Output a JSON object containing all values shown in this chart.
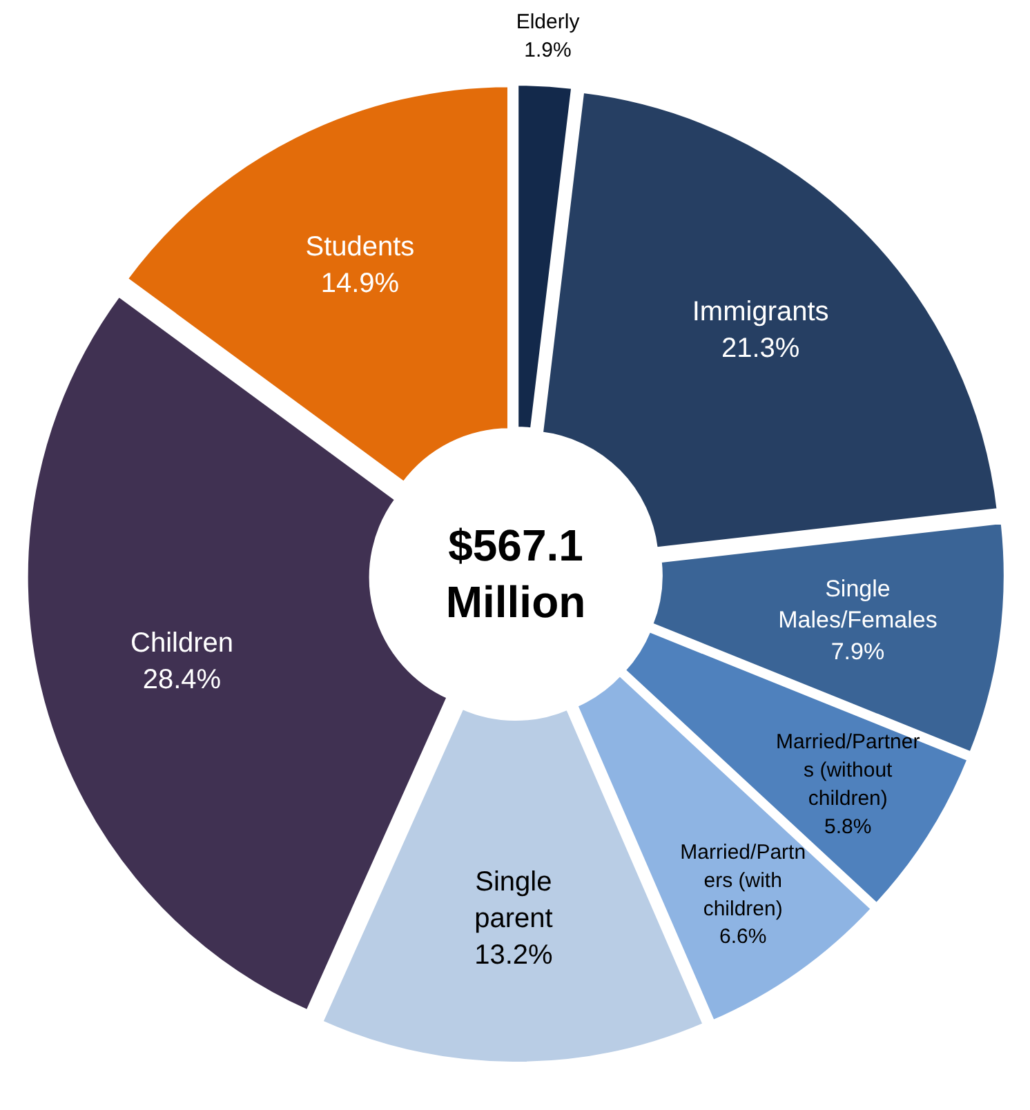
{
  "chart_data": {
    "type": "donut",
    "categories": [
      "Elderly",
      "Immigrants",
      "Single\nMales/Females",
      "Married/Partner\ns (without\nchildren)",
      "Married/Partn\ners (with\nchildren)",
      "Single\nparent",
      "Children",
      "Students"
    ],
    "values": [
      1.9,
      21.3,
      7.9,
      5.8,
      6.6,
      13.2,
      28.4,
      14.9
    ],
    "colors": [
      "#13294b",
      "#263f63",
      "#3a6496",
      "#4f81bd",
      "#8eb4e3",
      "#b9cde5",
      "#403152",
      "#e36c0a"
    ],
    "value_labels": [
      "1.9%",
      "21.3%",
      "7.9%",
      "5.8%",
      "6.6%",
      "13.2%",
      "28.4%",
      "14.9%"
    ],
    "annotations": [
      "$567.1\nMillion"
    ]
  }
}
